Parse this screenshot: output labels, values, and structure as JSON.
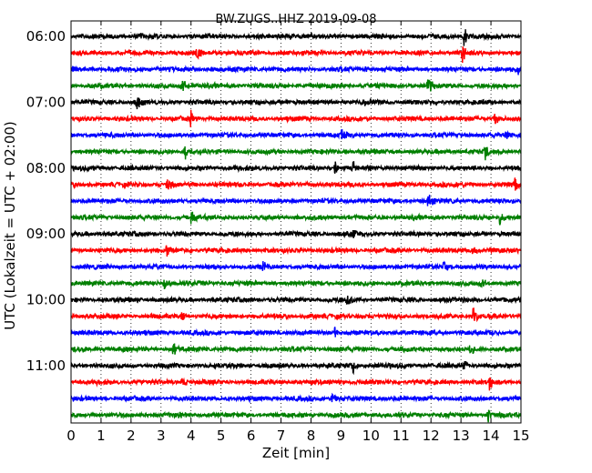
{
  "chart_data": {
    "type": "line",
    "title": "BW.ZUGS..HHZ 2019-09-08",
    "xlabel": "Zeit  [min]",
    "ylabel": "UTC (Lokalzeit = UTC + 02:00)",
    "xlim": [
      0,
      15
    ],
    "x_ticks": [
      "0",
      "1",
      "2",
      "3",
      "4",
      "5",
      "6",
      "7",
      "8",
      "9",
      "10",
      "11",
      "12",
      "13",
      "14",
      "15"
    ],
    "y_tick_labels": [
      {
        "row": 0,
        "label": "06:00"
      },
      {
        "row": 4,
        "label": "07:00"
      },
      {
        "row": 8,
        "label": "08:00"
      },
      {
        "row": 12,
        "label": "09:00"
      },
      {
        "row": 16,
        "label": "10:00"
      },
      {
        "row": 20,
        "label": "11:00"
      }
    ],
    "row_interval_min": 15,
    "row_count": 24,
    "colors": [
      "#000000",
      "#ff0000",
      "#0000ff",
      "#007f00"
    ],
    "grid": "vertical-dotted",
    "series": [
      {
        "row": 0,
        "start": "06:00",
        "events": [
          {
            "t": 2.3,
            "amp": 0.35
          },
          {
            "t": 7.3,
            "amp": 0.3
          },
          {
            "t": 13.1,
            "amp": 1.0
          }
        ]
      },
      {
        "row": 1,
        "start": "06:15",
        "events": [
          {
            "t": 4.2,
            "amp": 0.8
          },
          {
            "t": 13.05,
            "amp": 0.9
          }
        ]
      },
      {
        "row": 2,
        "start": "06:30",
        "events": [
          {
            "t": 9.8,
            "amp": 0.3
          },
          {
            "t": 14.9,
            "amp": 0.45
          }
        ]
      },
      {
        "row": 3,
        "start": "06:45",
        "events": [
          {
            "t": 3.7,
            "amp": 0.9
          },
          {
            "t": 11.9,
            "amp": 0.95
          }
        ]
      },
      {
        "row": 4,
        "start": "07:00",
        "events": [
          {
            "t": 2.2,
            "amp": 1.0
          },
          {
            "t": 9.8,
            "amp": 0.35
          }
        ]
      },
      {
        "row": 5,
        "start": "07:15",
        "events": [
          {
            "t": 4.0,
            "amp": 0.95
          },
          {
            "t": 14.1,
            "amp": 0.85
          }
        ]
      },
      {
        "row": 6,
        "start": "07:30",
        "events": [
          {
            "t": 9.0,
            "amp": 0.9
          },
          {
            "t": 14.5,
            "amp": 0.35
          }
        ]
      },
      {
        "row": 7,
        "start": "07:45",
        "events": [
          {
            "t": 3.8,
            "amp": 0.8
          },
          {
            "t": 13.8,
            "amp": 0.85
          }
        ]
      },
      {
        "row": 8,
        "start": "08:00",
        "events": [
          {
            "t": 8.8,
            "amp": 0.8
          },
          {
            "t": 9.4,
            "amp": 0.75
          }
        ]
      },
      {
        "row": 9,
        "start": "08:15",
        "events": [
          {
            "t": 3.2,
            "amp": 0.85
          },
          {
            "t": 14.8,
            "amp": 0.85
          }
        ]
      },
      {
        "row": 10,
        "start": "08:30",
        "events": [
          {
            "t": 11.9,
            "amp": 0.85
          }
        ]
      },
      {
        "row": 11,
        "start": "08:45",
        "events": [
          {
            "t": 4.0,
            "amp": 0.7
          },
          {
            "t": 14.3,
            "amp": 0.9
          }
        ]
      },
      {
        "row": 12,
        "start": "09:00",
        "events": [
          {
            "t": 9.4,
            "amp": 0.55
          }
        ]
      },
      {
        "row": 13,
        "start": "09:15",
        "events": [
          {
            "t": 3.2,
            "amp": 0.8
          },
          {
            "t": 13.4,
            "amp": 0.7
          }
        ]
      },
      {
        "row": 14,
        "start": "09:30",
        "events": [
          {
            "t": 6.4,
            "amp": 0.7
          },
          {
            "t": 12.4,
            "amp": 0.7
          }
        ]
      },
      {
        "row": 15,
        "start": "09:45",
        "events": [
          {
            "t": 3.1,
            "amp": 0.85
          },
          {
            "t": 13.7,
            "amp": 0.6
          }
        ]
      },
      {
        "row": 16,
        "start": "10:00",
        "events": [
          {
            "t": 9.2,
            "amp": 0.75
          }
        ]
      },
      {
        "row": 17,
        "start": "10:15",
        "events": [
          {
            "t": 3.7,
            "amp": 0.7
          },
          {
            "t": 13.4,
            "amp": 0.85
          }
        ]
      },
      {
        "row": 18,
        "start": "10:30",
        "events": [
          {
            "t": 8.8,
            "amp": 0.6
          }
        ]
      },
      {
        "row": 19,
        "start": "10:45",
        "events": [
          {
            "t": 3.4,
            "amp": 0.9
          },
          {
            "t": 13.3,
            "amp": 0.75
          }
        ]
      },
      {
        "row": 20,
        "start": "11:00",
        "events": [
          {
            "t": 9.4,
            "amp": 0.7
          },
          {
            "t": 13.1,
            "amp": 0.6
          }
        ]
      },
      {
        "row": 21,
        "start": "11:15",
        "events": [
          {
            "t": 3.7,
            "amp": 0.7
          },
          {
            "t": 13.95,
            "amp": 0.85
          }
        ]
      },
      {
        "row": 22,
        "start": "11:30",
        "events": [
          {
            "t": 8.7,
            "amp": 0.6
          }
        ]
      },
      {
        "row": 23,
        "start": "11:45",
        "events": [
          {
            "t": 3.6,
            "amp": 0.55
          },
          {
            "t": 13.9,
            "amp": 0.75
          }
        ]
      }
    ]
  }
}
